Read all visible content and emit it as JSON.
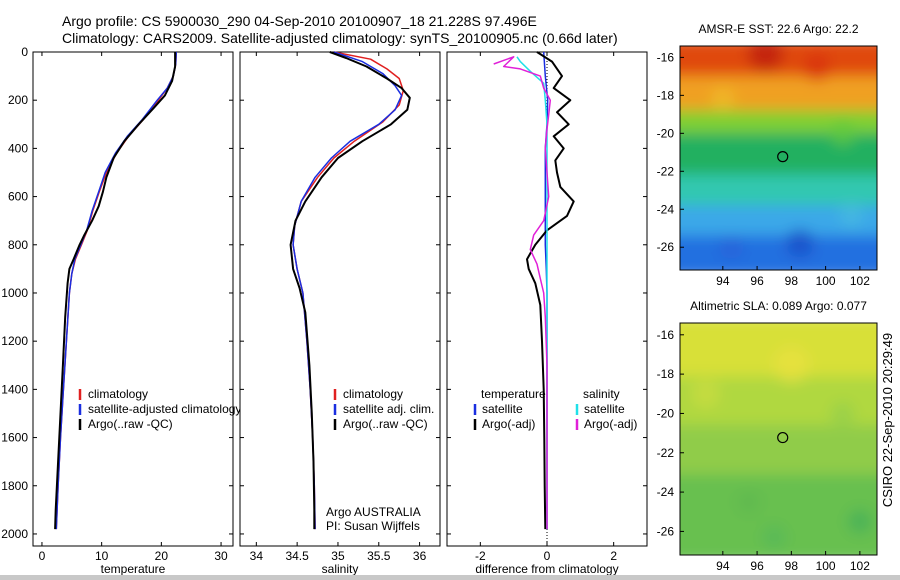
{
  "header": {
    "line1": "Argo profile: CS 5900030_290 04-Sep-2010 20100907_18 21.228S 97.496E",
    "line2": "Climatology: CARS2009. Satellite-adjusted climatology: synTS_20100905.nc (0.66d later)"
  },
  "side_stamp": "CSIRO 22-Sep-2010 20:29:49",
  "colors": {
    "climatology": "#e02020",
    "satellite": "#1a2ee0",
    "argo": "#000000",
    "sal_satellite": "#20e0e8",
    "sal_argo": "#e020d8"
  },
  "chart_data": [
    {
      "type": "line",
      "id": "temperature-profile",
      "xlabel": "temperature",
      "xlim": [
        -1.5,
        32
      ],
      "xticks": [
        0,
        10,
        20,
        30
      ],
      "ylim": [
        0,
        2050
      ],
      "yticks": [
        0,
        200,
        400,
        600,
        800,
        1000,
        1200,
        1400,
        1600,
        1800,
        2000
      ],
      "y_reversed": true,
      "legend": {
        "placement": "lower-right",
        "entries": [
          "climatology",
          "satellite-adjusted climatology",
          "Argo(..raw -QC)"
        ]
      },
      "series": [
        {
          "name": "climatology",
          "color_key": "climatology",
          "width": 1.5,
          "points": [
            [
              22.5,
              0
            ],
            [
              22.4,
              50
            ],
            [
              22.0,
              100
            ],
            [
              21.0,
              150
            ],
            [
              19.5,
              200
            ],
            [
              17.0,
              280
            ],
            [
              14.5,
              350
            ],
            [
              12.5,
              420
            ],
            [
              10.8,
              500
            ],
            [
              9.6,
              580
            ],
            [
              8.5,
              660
            ],
            [
              7.6,
              740
            ],
            [
              6.6,
              800
            ],
            [
              5.6,
              860
            ],
            [
              5.0,
              920
            ],
            [
              4.6,
              1000
            ],
            [
              4.1,
              1200
            ],
            [
              3.6,
              1400
            ],
            [
              3.1,
              1600
            ],
            [
              2.7,
              1800
            ],
            [
              2.4,
              1980
            ]
          ]
        },
        {
          "name": "satellite-adjusted climatology",
          "color_key": "satellite",
          "width": 1.5,
          "points": [
            [
              22.5,
              0
            ],
            [
              22.4,
              50
            ],
            [
              22.0,
              100
            ],
            [
              21.0,
              150
            ],
            [
              19.3,
              200
            ],
            [
              16.8,
              280
            ],
            [
              14.3,
              350
            ],
            [
              12.3,
              420
            ],
            [
              10.6,
              500
            ],
            [
              9.5,
              580
            ],
            [
              8.4,
              660
            ],
            [
              7.5,
              740
            ],
            [
              6.5,
              800
            ],
            [
              5.5,
              860
            ],
            [
              5.0,
              920
            ],
            [
              4.6,
              1000
            ],
            [
              4.1,
              1200
            ],
            [
              3.6,
              1400
            ],
            [
              3.1,
              1600
            ],
            [
              2.7,
              1800
            ],
            [
              2.4,
              1980
            ]
          ]
        },
        {
          "name": "Argo(..raw -QC)",
          "color_key": "argo",
          "width": 2,
          "points": [
            [
              22.3,
              0
            ],
            [
              22.3,
              60
            ],
            [
              21.8,
              120
            ],
            [
              20.6,
              180
            ],
            [
              18.8,
              230
            ],
            [
              16.2,
              300
            ],
            [
              13.8,
              370
            ],
            [
              12.0,
              440
            ],
            [
              10.8,
              520
            ],
            [
              10.2,
              580
            ],
            [
              9.5,
              640
            ],
            [
              8.4,
              700
            ],
            [
              7.1,
              760
            ],
            [
              6.3,
              800
            ],
            [
              5.3,
              860
            ],
            [
              4.6,
              900
            ],
            [
              4.3,
              960
            ],
            [
              3.9,
              1100
            ],
            [
              3.5,
              1300
            ],
            [
              3.1,
              1500
            ],
            [
              2.7,
              1700
            ],
            [
              2.3,
              1900
            ],
            [
              2.2,
              1980
            ]
          ]
        }
      ]
    },
    {
      "type": "line",
      "id": "salinity-profile",
      "xlabel": "salinity",
      "xlim": [
        33.8,
        36.25
      ],
      "xticks": [
        34,
        34.5,
        35,
        35.5,
        36
      ],
      "ylim": [
        0,
        2050
      ],
      "y_reversed": true,
      "legend": {
        "placement": "lower-right",
        "entries": [
          "climatology",
          "satellite adj. clim.",
          "Argo(..raw -QC)"
        ]
      },
      "annotation": [
        "Argo AUSTRALIA",
        "PI: Susan Wijffels"
      ],
      "series": [
        {
          "name": "climatology",
          "color_key": "climatology",
          "width": 1.5,
          "points": [
            [
              34.95,
              0
            ],
            [
              35.4,
              30
            ],
            [
              35.6,
              70
            ],
            [
              35.75,
              110
            ],
            [
              35.8,
              160
            ],
            [
              35.75,
              220
            ],
            [
              35.55,
              290
            ],
            [
              35.2,
              370
            ],
            [
              34.95,
              440
            ],
            [
              34.75,
              520
            ],
            [
              34.55,
              620
            ],
            [
              34.47,
              720
            ],
            [
              34.45,
              800
            ],
            [
              34.5,
              900
            ],
            [
              34.57,
              1000
            ],
            [
              34.62,
              1200
            ],
            [
              34.66,
              1400
            ],
            [
              34.69,
              1600
            ],
            [
              34.71,
              1800
            ],
            [
              34.72,
              1980
            ]
          ]
        },
        {
          "name": "satellite adj. clim.",
          "color_key": "satellite",
          "width": 1.5,
          "points": [
            [
              34.95,
              0
            ],
            [
              35.3,
              40
            ],
            [
              35.55,
              90
            ],
            [
              35.7,
              140
            ],
            [
              35.78,
              180
            ],
            [
              35.7,
              240
            ],
            [
              35.5,
              300
            ],
            [
              35.15,
              370
            ],
            [
              34.92,
              440
            ],
            [
              34.72,
              520
            ],
            [
              34.55,
              620
            ],
            [
              34.47,
              720
            ],
            [
              34.45,
              800
            ],
            [
              34.5,
              900
            ],
            [
              34.57,
              1000
            ],
            [
              34.62,
              1200
            ],
            [
              34.66,
              1400
            ],
            [
              34.69,
              1600
            ],
            [
              34.71,
              1800
            ],
            [
              34.72,
              1980
            ]
          ]
        },
        {
          "name": "Argo(..raw -QC)",
          "color_key": "argo",
          "width": 2,
          "points": [
            [
              34.9,
              0
            ],
            [
              35.1,
              25
            ],
            [
              35.35,
              60
            ],
            [
              35.6,
              110
            ],
            [
              35.78,
              150
            ],
            [
              35.88,
              190
            ],
            [
              35.85,
              240
            ],
            [
              35.65,
              300
            ],
            [
              35.3,
              370
            ],
            [
              35.0,
              440
            ],
            [
              34.8,
              520
            ],
            [
              34.6,
              620
            ],
            [
              34.48,
              700
            ],
            [
              34.42,
              800
            ],
            [
              34.45,
              900
            ],
            [
              34.53,
              980
            ],
            [
              34.6,
              1080
            ],
            [
              34.65,
              1300
            ],
            [
              34.68,
              1500
            ],
            [
              34.7,
              1700
            ],
            [
              34.71,
              1900
            ],
            [
              34.71,
              1980
            ]
          ]
        }
      ]
    },
    {
      "type": "line",
      "id": "difference-profile",
      "xlabel": "difference from climatology",
      "xlim": [
        -3,
        3
      ],
      "xticks": [
        -2,
        0,
        2
      ],
      "ylim": [
        0,
        2050
      ],
      "y_reversed": true,
      "zero_line": "dotted",
      "legend": {
        "placement": "lower-center",
        "left_title": "temperature",
        "right_title": "salinity",
        "left_entries": [
          "satellite",
          "Argo(-adj)"
        ],
        "right_entries": [
          "satellite",
          "Argo(-adj)"
        ]
      },
      "series": [
        {
          "name": "temperature satellite",
          "color_key": "satellite",
          "width": 1.5,
          "points": [
            [
              -0.1,
              0
            ],
            [
              -0.05,
              100
            ],
            [
              0.02,
              200
            ],
            [
              0.0,
              300
            ],
            [
              -0.05,
              400
            ],
            [
              -0.05,
              500
            ],
            [
              -0.05,
              600
            ],
            [
              -0.05,
              700
            ],
            [
              -0.05,
              800
            ],
            [
              -0.02,
              900
            ],
            [
              0.0,
              1000
            ],
            [
              0.0,
              1400
            ],
            [
              0.0,
              1980
            ]
          ]
        },
        {
          "name": "temperature Argo(-adj)",
          "color_key": "argo",
          "width": 2,
          "points": [
            [
              -0.3,
              0
            ],
            [
              0.15,
              40
            ],
            [
              0.45,
              100
            ],
            [
              0.2,
              150
            ],
            [
              0.7,
              200
            ],
            [
              0.3,
              250
            ],
            [
              0.65,
              300
            ],
            [
              0.2,
              350
            ],
            [
              0.5,
              400
            ],
            [
              0.25,
              450
            ],
            [
              0.3,
              500
            ],
            [
              0.4,
              560
            ],
            [
              0.8,
              620
            ],
            [
              0.6,
              680
            ],
            [
              0.0,
              740
            ],
            [
              -0.35,
              800
            ],
            [
              -0.6,
              860
            ],
            [
              -0.55,
              900
            ],
            [
              -0.35,
              960
            ],
            [
              -0.2,
              1050
            ],
            [
              -0.15,
              1200
            ],
            [
              -0.1,
              1400
            ],
            [
              -0.08,
              1600
            ],
            [
              -0.07,
              1800
            ],
            [
              -0.05,
              1980
            ]
          ]
        },
        {
          "name": "salinity satellite",
          "color_key": "sal_satellite",
          "width": 1.5,
          "points": [
            [
              -0.9,
              20
            ],
            [
              -0.8,
              40
            ],
            [
              -0.5,
              80
            ],
            [
              -0.1,
              130
            ],
            [
              -0.05,
              200
            ],
            [
              0.0,
              300
            ],
            [
              0.0,
              500
            ],
            [
              0.0,
              800
            ],
            [
              0.0,
              1200
            ],
            [
              0.0,
              1600
            ],
            [
              0.0,
              1980
            ]
          ]
        },
        {
          "name": "salinity Argo(-adj)",
          "color_key": "sal_argo",
          "width": 1.5,
          "points": [
            [
              -1.6,
              50
            ],
            [
              -1.0,
              20
            ],
            [
              -1.3,
              60
            ],
            [
              -0.8,
              70
            ],
            [
              -0.2,
              100
            ],
            [
              -0.1,
              150
            ],
            [
              0.1,
              200
            ],
            [
              0.05,
              260
            ],
            [
              0.0,
              320
            ],
            [
              -0.05,
              400
            ],
            [
              0.0,
              500
            ],
            [
              0.05,
              600
            ],
            [
              -0.1,
              700
            ],
            [
              -0.4,
              760
            ],
            [
              -0.5,
              820
            ],
            [
              -0.3,
              880
            ],
            [
              -0.2,
              940
            ],
            [
              -0.1,
              1000
            ],
            [
              -0.05,
              1100
            ],
            [
              0.0,
              1300
            ],
            [
              0.0,
              1600
            ],
            [
              0.0,
              1980
            ]
          ]
        }
      ]
    },
    {
      "type": "heatmap",
      "id": "sst-map",
      "title": "AMSR-E SST: 22.6 Argo: 22.2",
      "xlim": [
        91.5,
        103
      ],
      "xticks": [
        94,
        96,
        98,
        100,
        102
      ],
      "ylim": [
        -27.2,
        -15.4
      ],
      "yticks": [
        -16,
        -18,
        -20,
        -22,
        -24,
        -26
      ],
      "marker": {
        "lon": 97.496,
        "lat": -21.228
      },
      "bands": [
        {
          "from_lat": -15.4,
          "to_lat": -17.4,
          "color": "#e04a10"
        },
        {
          "from_lat": -17.4,
          "to_lat": -19.2,
          "color": "#f0a020"
        },
        {
          "from_lat": -19.2,
          "to_lat": -20.4,
          "color": "#80d030"
        },
        {
          "from_lat": -20.4,
          "to_lat": -22.6,
          "color": "#20b060"
        },
        {
          "from_lat": -22.6,
          "to_lat": -24.2,
          "color": "#30c8b0"
        },
        {
          "from_lat": -24.2,
          "to_lat": -25.8,
          "color": "#3aa8e8"
        },
        {
          "from_lat": -25.8,
          "to_lat": -27.2,
          "color": "#2070e0"
        }
      ]
    },
    {
      "type": "heatmap",
      "id": "sla-map",
      "title": "Altimetric SLA: 0.089 Argo: 0.077",
      "xlim": [
        91.5,
        103
      ],
      "xticks": [
        94,
        96,
        98,
        100,
        102
      ],
      "ylim": [
        -27.2,
        -15.4
      ],
      "yticks": [
        -16,
        -18,
        -20,
        -22,
        -24,
        -26
      ],
      "marker": {
        "lon": 97.496,
        "lat": -21.228
      },
      "bands": [
        {
          "from_lat": -15.4,
          "to_lat": -18.5,
          "color": "#d8e038"
        },
        {
          "from_lat": -18.5,
          "to_lat": -21.0,
          "color": "#b0d840"
        },
        {
          "from_lat": -21.0,
          "to_lat": -23.5,
          "color": "#90cc48"
        },
        {
          "from_lat": -23.5,
          "to_lat": -27.2,
          "color": "#68c050"
        }
      ]
    }
  ]
}
